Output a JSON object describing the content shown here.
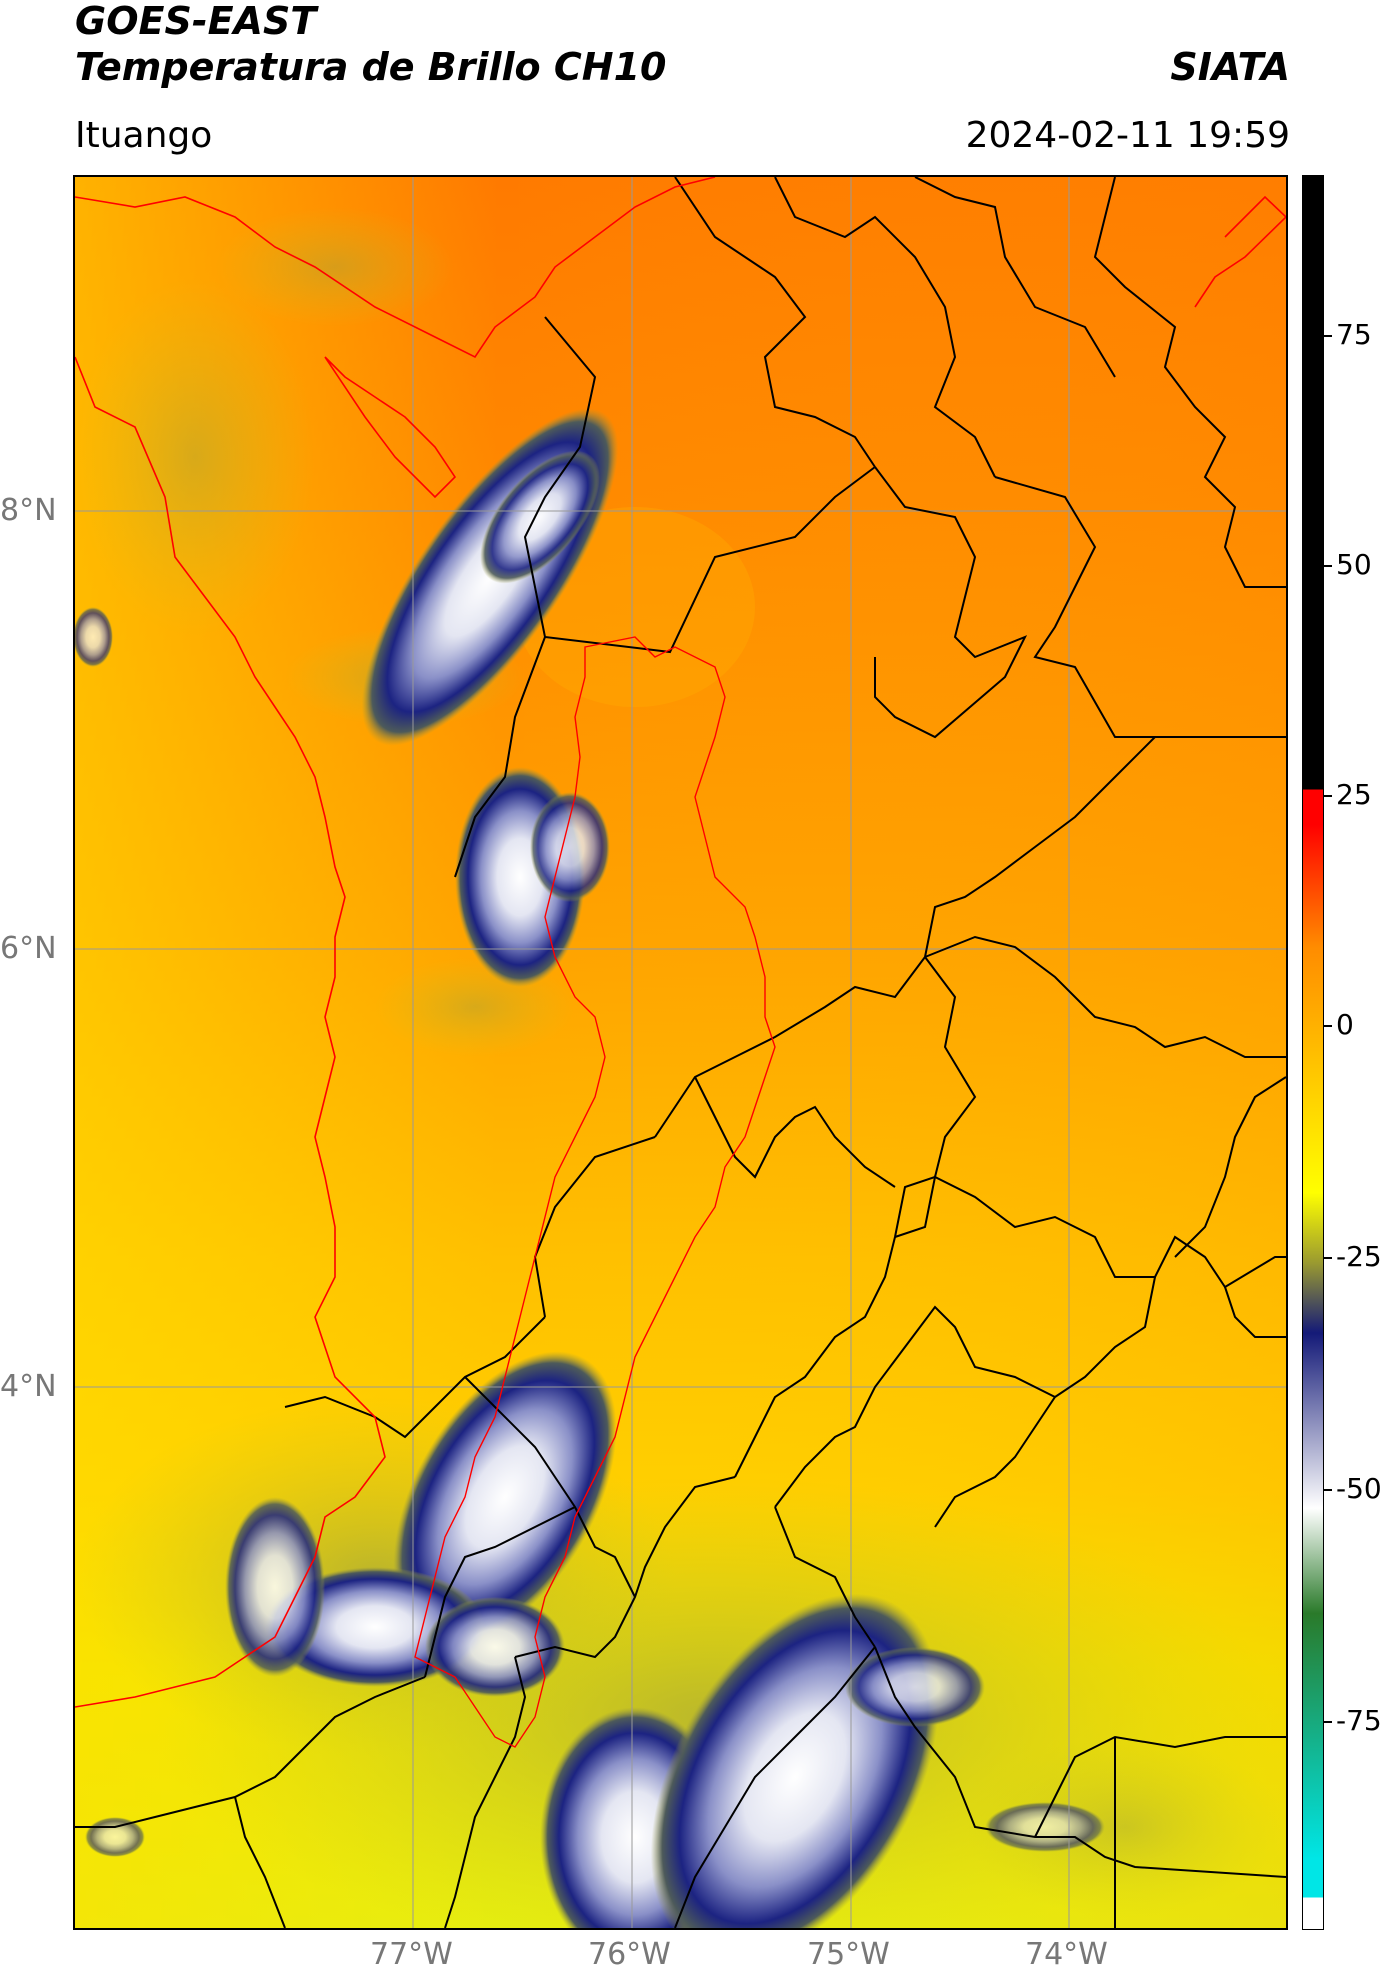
{
  "header": {
    "title_line1": "GOES-EAST",
    "title_line2": "Temperatura de Brillo CH10",
    "organization": "SIATA",
    "location": "Ituango",
    "timestamp": "2024-02-11 19:59"
  },
  "map": {
    "lat_labels": [
      "8°N",
      "6°N",
      "4°N"
    ],
    "lon_labels": [
      "77°W",
      "76°W",
      "75°W",
      "74°W"
    ],
    "boundary_colors": {
      "national": "#ff0000",
      "departmental": "#000000",
      "basin": "#ff0000"
    },
    "gridline_color": "#999999"
  },
  "colorbar": {
    "ticks": [
      "75",
      "50",
      "25",
      "0",
      "-25",
      "-50",
      "-75"
    ],
    "colors": {
      "warm_top": "#000000",
      "red": "#ff0000",
      "orange": "#ff8c00",
      "yellow": "#ffff00",
      "olive": "#9a9a30",
      "navy": "#141a78",
      "white": "#ffffff",
      "green": "#2a7a2a",
      "cyan": "#00e6e6"
    }
  }
}
